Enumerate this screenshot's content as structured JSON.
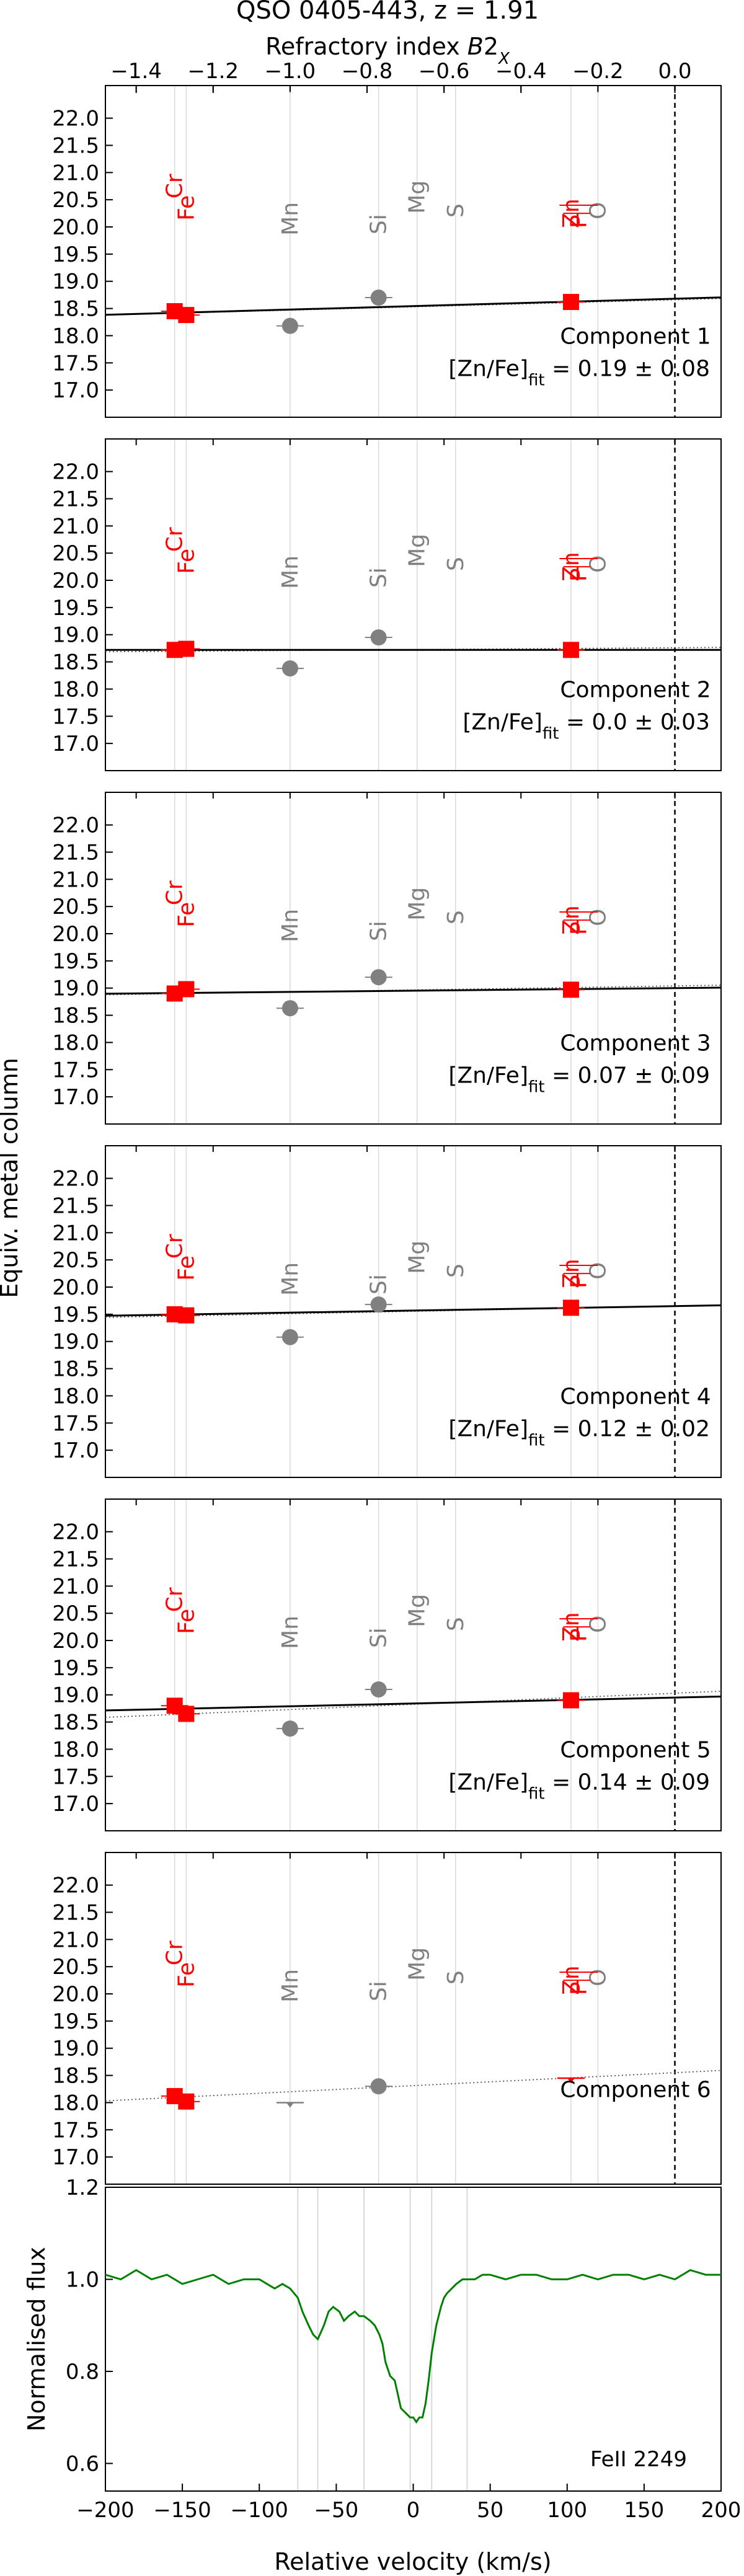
{
  "figure": {
    "title": "QSO 0405-443, z = 1.91",
    "top_axis_label": "Refractory index B2_X",
    "y_axis_label": "Equiv. metal column",
    "colors": {
      "volatile": "#ff0000",
      "refractory": "#808080",
      "fit": "#000000",
      "flux": "#008000",
      "grid": "#d9d9d9"
    }
  },
  "chart_data": [
    {
      "type": "scatter",
      "panel": "Component 1",
      "label": "Component 1",
      "fit_label": "[Zn/Fe]fit = 0.19 ± 0.08",
      "top_axis": {
        "label": "Refractory index B2_X",
        "ticks": [
          -1.4,
          -1.2,
          -1.0,
          -0.8,
          -0.6,
          -0.4,
          -0.2,
          0.0
        ],
        "range": [
          -1.48,
          0.12
        ]
      },
      "ylim": [
        16.5,
        22.6
      ],
      "yticks": [
        17.0,
        17.5,
        18.0,
        18.5,
        19.0,
        19.5,
        20.0,
        20.5,
        21.0,
        21.5,
        22.0
      ],
      "element_labels": [
        "Cr",
        "Fe",
        "Mn",
        "Si",
        "Mg",
        "S",
        "Zn",
        "P",
        "O"
      ],
      "points": [
        {
          "element": "Cr",
          "x": -1.3,
          "y": 18.45,
          "group": "measured-red"
        },
        {
          "element": "Fe",
          "x": -1.27,
          "y": 18.38,
          "group": "measured-red"
        },
        {
          "element": "Mn",
          "x": -1.0,
          "y": 18.18,
          "group": "measured-gray"
        },
        {
          "element": "Si",
          "x": -0.77,
          "y": 18.7,
          "group": "measured-gray"
        },
        {
          "element": "Zn",
          "x": -0.27,
          "y": 18.62,
          "group": "measured-red"
        }
      ],
      "fit": {
        "intercept": 18.68,
        "slope": 0.2
      },
      "fit_dotted": {
        "intercept": 18.66,
        "slope": 0.19
      }
    },
    {
      "type": "scatter",
      "panel": "Component 2",
      "label": "Component 2",
      "fit_label": "[Zn/Fe]fit = 0.0 ± 0.03",
      "ylim": [
        16.5,
        22.6
      ],
      "yticks": [
        17.0,
        17.5,
        18.0,
        18.5,
        19.0,
        19.5,
        20.0,
        20.5,
        21.0,
        21.5,
        22.0
      ],
      "element_labels": [
        "Cr",
        "Fe",
        "Mn",
        "Si",
        "Mg",
        "S",
        "Zn",
        "P",
        "O"
      ],
      "points": [
        {
          "element": "Cr",
          "x": -1.3,
          "y": 18.72,
          "group": "measured-red"
        },
        {
          "element": "Fe",
          "x": -1.27,
          "y": 18.74,
          "group": "measured-red"
        },
        {
          "element": "Mn",
          "x": -1.0,
          "y": 18.38,
          "group": "measured-gray"
        },
        {
          "element": "Si",
          "x": -0.77,
          "y": 18.95,
          "group": "measured-gray"
        },
        {
          "element": "Zn",
          "x": -0.27,
          "y": 18.72,
          "group": "measured-red"
        }
      ],
      "fit": {
        "intercept": 18.72,
        "slope": 0.0
      },
      "fit_dotted": {
        "intercept": 18.76,
        "slope": 0.05
      }
    },
    {
      "type": "scatter",
      "panel": "Component 3",
      "label": "Component 3",
      "fit_label": "[Zn/Fe]fit = 0.07 ± 0.09",
      "ylim": [
        16.5,
        22.6
      ],
      "yticks": [
        17.0,
        17.5,
        18.0,
        18.5,
        19.0,
        19.5,
        20.0,
        20.5,
        21.0,
        21.5,
        22.0
      ],
      "element_labels": [
        "Cr",
        "Fe",
        "Mn",
        "Si",
        "Mg",
        "S",
        "Zn",
        "P",
        "O"
      ],
      "points": [
        {
          "element": "Cr",
          "x": -1.3,
          "y": 18.9,
          "group": "measured-red"
        },
        {
          "element": "Fe",
          "x": -1.27,
          "y": 18.98,
          "group": "measured-red"
        },
        {
          "element": "Mn",
          "x": -1.0,
          "y": 18.63,
          "group": "measured-gray"
        },
        {
          "element": "Si",
          "x": -0.77,
          "y": 19.2,
          "group": "measured-gray"
        },
        {
          "element": "Zn",
          "x": -0.27,
          "y": 18.97,
          "group": "measured-red"
        }
      ],
      "fit": {
        "intercept": 19.0,
        "slope": 0.07
      },
      "fit_dotted": {
        "intercept": 19.04,
        "slope": 0.11
      }
    },
    {
      "type": "scatter",
      "panel": "Component 4",
      "label": "Component 4",
      "fit_label": "[Zn/Fe]fit = 0.12 ± 0.02",
      "ylim": [
        16.5,
        22.6
      ],
      "yticks": [
        17.0,
        17.5,
        18.0,
        18.5,
        19.0,
        19.5,
        20.0,
        20.5,
        21.0,
        21.5,
        22.0
      ],
      "element_labels": [
        "Cr",
        "Fe",
        "Mn",
        "Si",
        "Mg",
        "S",
        "Zn",
        "P",
        "O"
      ],
      "points": [
        {
          "element": "Cr",
          "x": -1.3,
          "y": 19.5,
          "group": "measured-red"
        },
        {
          "element": "Fe",
          "x": -1.27,
          "y": 19.48,
          "group": "measured-red"
        },
        {
          "element": "Mn",
          "x": -1.0,
          "y": 19.08,
          "group": "measured-gray"
        },
        {
          "element": "Si",
          "x": -0.77,
          "y": 19.68,
          "group": "measured-gray"
        },
        {
          "element": "Zn",
          "x": -0.27,
          "y": 19.62,
          "group": "measured-red"
        }
      ],
      "fit": {
        "intercept": 19.65,
        "slope": 0.12
      },
      "fit_dotted": {
        "intercept": 19.65,
        "slope": 0.14
      }
    },
    {
      "type": "scatter",
      "panel": "Component 5",
      "label": "Component 5",
      "fit_label": "[Zn/Fe]fit = 0.14 ± 0.09",
      "ylim": [
        16.5,
        22.6
      ],
      "yticks": [
        17.0,
        17.5,
        18.0,
        18.5,
        19.0,
        19.5,
        20.0,
        20.5,
        21.0,
        21.5,
        22.0
      ],
      "element_labels": [
        "Cr",
        "Fe",
        "Mn",
        "Si",
        "Mg",
        "S",
        "Zn",
        "P",
        "O"
      ],
      "points": [
        {
          "element": "Cr",
          "x": -1.3,
          "y": 18.8,
          "group": "measured-red"
        },
        {
          "element": "Fe",
          "x": -1.27,
          "y": 18.65,
          "group": "measured-red"
        },
        {
          "element": "Mn",
          "x": -1.0,
          "y": 18.38,
          "group": "measured-gray"
        },
        {
          "element": "Si",
          "x": -0.77,
          "y": 19.1,
          "group": "measured-gray"
        },
        {
          "element": "Zn",
          "x": -0.27,
          "y": 18.9,
          "group": "measured-red"
        }
      ],
      "fit": {
        "intercept": 18.95,
        "slope": 0.16
      },
      "fit_dotted": {
        "intercept": 19.03,
        "slope": 0.3
      }
    },
    {
      "type": "scatter",
      "panel": "Component 6",
      "label": "Component 6",
      "fit_label": "",
      "ylim": [
        16.5,
        22.6
      ],
      "yticks": [
        17.0,
        17.5,
        18.0,
        18.5,
        19.0,
        19.5,
        20.0,
        20.5,
        21.0,
        21.5,
        22.0
      ],
      "element_labels": [
        "Cr",
        "Fe",
        "Mn",
        "Si",
        "Mg",
        "S",
        "Zn",
        "P",
        "O"
      ],
      "points": [
        {
          "element": "Cr",
          "x": -1.3,
          "y": 18.12,
          "group": "measured-red"
        },
        {
          "element": "Fe",
          "x": -1.27,
          "y": 18.02,
          "group": "measured-red"
        },
        {
          "element": "Si",
          "x": -0.77,
          "y": 18.3,
          "group": "measured-gray"
        }
      ],
      "limits": [
        {
          "element": "Mn",
          "x": -1.0,
          "y": 18.0,
          "group": "limit-gray"
        },
        {
          "element": "Zn",
          "x": -0.27,
          "y": 18.45,
          "group": "limit-red"
        }
      ],
      "fit": null,
      "fit_dotted": {
        "intercept": 18.55,
        "slope": 0.35
      }
    },
    {
      "type": "line",
      "panel": "flux",
      "label": "FeII 2249",
      "xlabel": "Relative velocity (km/s)",
      "ylabel": "Normalised flux",
      "xlim": [
        -200,
        200
      ],
      "ylim": [
        0.54,
        1.2
      ],
      "xticks": [
        -200,
        -150,
        -100,
        -50,
        0,
        50,
        100,
        150,
        200
      ],
      "yticks": [
        0.6,
        0.8,
        1.0,
        1.2
      ],
      "component_markers": [
        -75,
        -62,
        -32,
        -2,
        12,
        35
      ],
      "x": [
        -200,
        -190,
        -180,
        -170,
        -160,
        -150,
        -140,
        -130,
        -120,
        -110,
        -100,
        -95,
        -90,
        -85,
        -80,
        -75,
        -72,
        -68,
        -65,
        -62,
        -58,
        -55,
        -52,
        -48,
        -45,
        -42,
        -38,
        -35,
        -32,
        -28,
        -25,
        -22,
        -20,
        -18,
        -15,
        -12,
        -10,
        -8,
        -5,
        -2,
        0,
        2,
        4,
        6,
        8,
        10,
        12,
        15,
        18,
        20,
        22,
        25,
        28,
        32,
        35,
        40,
        45,
        50,
        60,
        70,
        80,
        90,
        100,
        110,
        120,
        130,
        140,
        150,
        160,
        170,
        180,
        190,
        200
      ],
      "values": [
        1.01,
        1.0,
        1.02,
        1.0,
        1.01,
        0.99,
        1.0,
        1.01,
        0.99,
        1.0,
        1.0,
        0.99,
        0.98,
        0.99,
        0.98,
        0.96,
        0.93,
        0.9,
        0.88,
        0.87,
        0.9,
        0.93,
        0.94,
        0.93,
        0.91,
        0.92,
        0.93,
        0.92,
        0.92,
        0.91,
        0.9,
        0.88,
        0.86,
        0.82,
        0.79,
        0.78,
        0.75,
        0.72,
        0.71,
        0.7,
        0.7,
        0.69,
        0.7,
        0.7,
        0.73,
        0.78,
        0.84,
        0.9,
        0.94,
        0.96,
        0.97,
        0.98,
        0.99,
        1.0,
        1.0,
        1.0,
        1.01,
        1.01,
        1.0,
        1.01,
        1.01,
        1.0,
        1.0,
        1.01,
        1.0,
        1.01,
        1.01,
        1.0,
        1.01,
        1.0,
        1.02,
        1.01,
        1.01
      ]
    }
  ]
}
